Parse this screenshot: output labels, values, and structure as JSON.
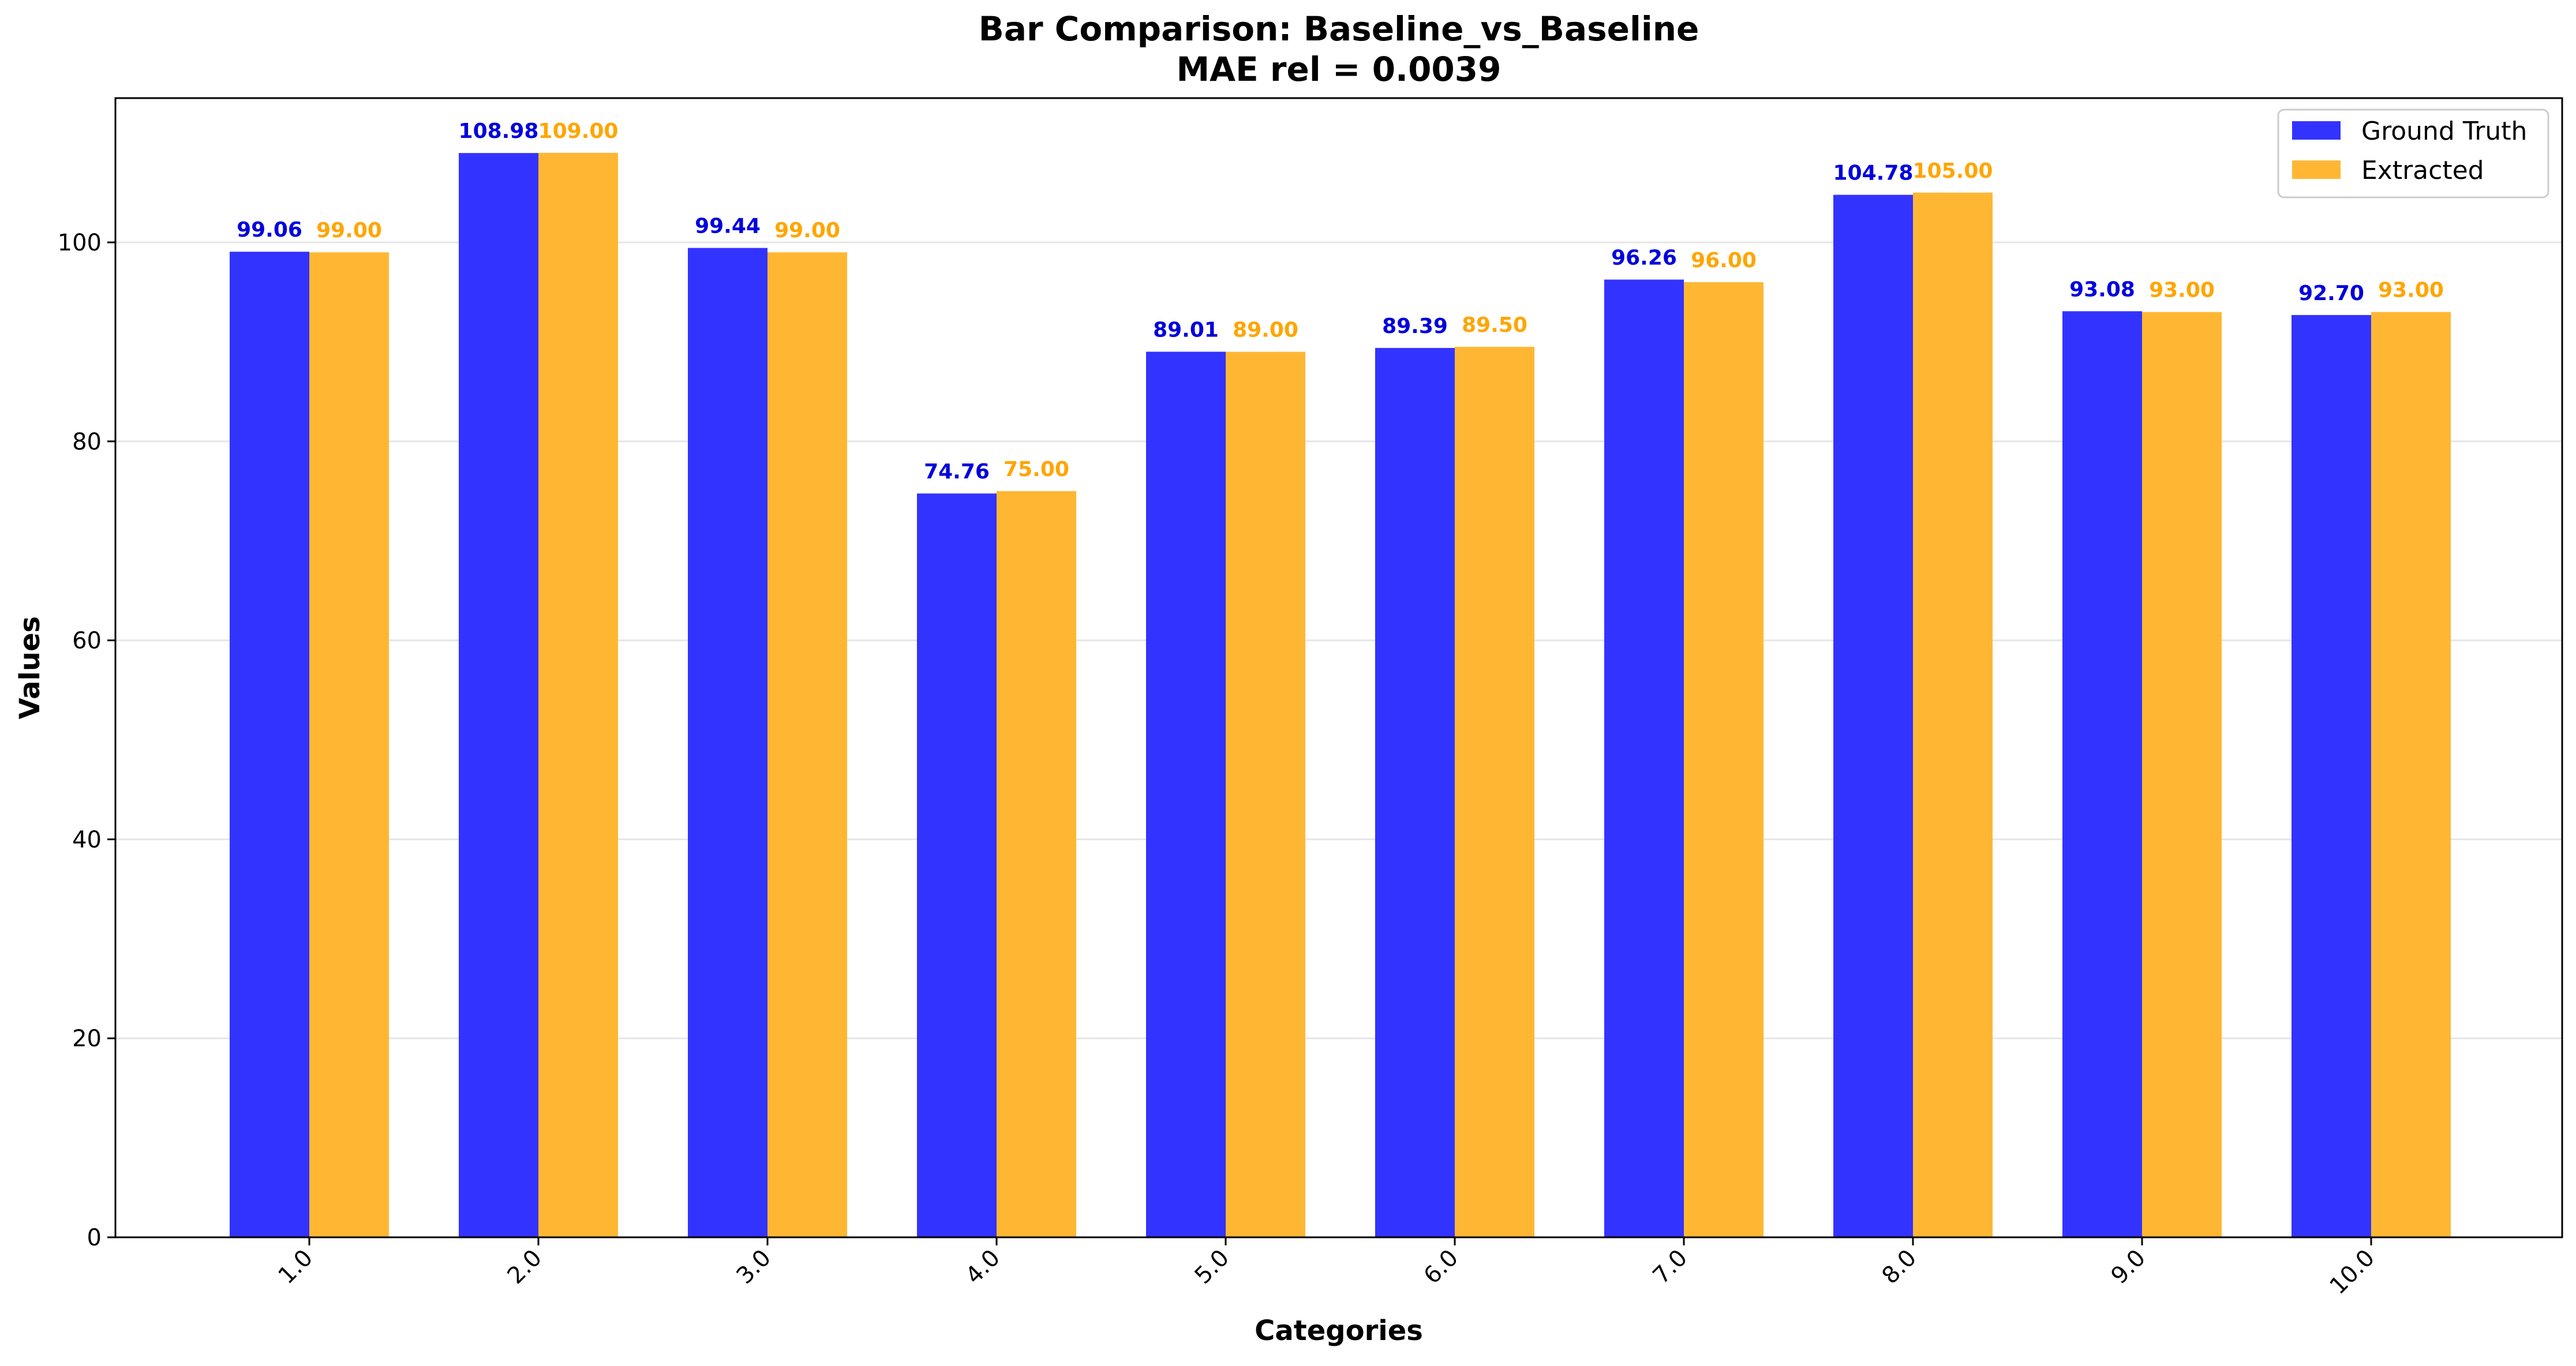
{
  "chart_data": {
    "type": "bar",
    "title": "Bar Comparison: Baseline_vs_Baseline",
    "subtitle": "MAE rel = 0.0039",
    "xlabel": "Categories",
    "ylabel": "Values",
    "categories": [
      "1.0",
      "2.0",
      "3.0",
      "4.0",
      "5.0",
      "6.0",
      "7.0",
      "8.0",
      "9.0",
      "10.0"
    ],
    "series": [
      {
        "name": "Ground Truth",
        "color": "#3333ff",
        "label_color": "#0000dd",
        "values": [
          99.06,
          108.98,
          99.44,
          74.76,
          89.01,
          89.39,
          96.26,
          104.78,
          93.08,
          92.7
        ],
        "labels": [
          "99.06",
          "108.98",
          "99.44",
          "74.76",
          "89.01",
          "89.39",
          "96.26",
          "104.78",
          "93.08",
          "92.70"
        ]
      },
      {
        "name": "Extracted",
        "color": "#ffb733",
        "label_color": "#ffa500",
        "values": [
          99.0,
          109.0,
          99.0,
          75.0,
          89.0,
          89.5,
          96.0,
          105.0,
          93.0,
          93.0
        ],
        "labels": [
          "99.00",
          "109.00",
          "99.00",
          "75.00",
          "89.00",
          "89.50",
          "96.00",
          "105.00",
          "93.00",
          "93.00"
        ]
      }
    ],
    "yticks": [
      "0",
      "20",
      "40",
      "60",
      "80",
      "100"
    ],
    "ylim": [
      0,
      114.5
    ],
    "grid": true,
    "legend_position": "top-right"
  }
}
